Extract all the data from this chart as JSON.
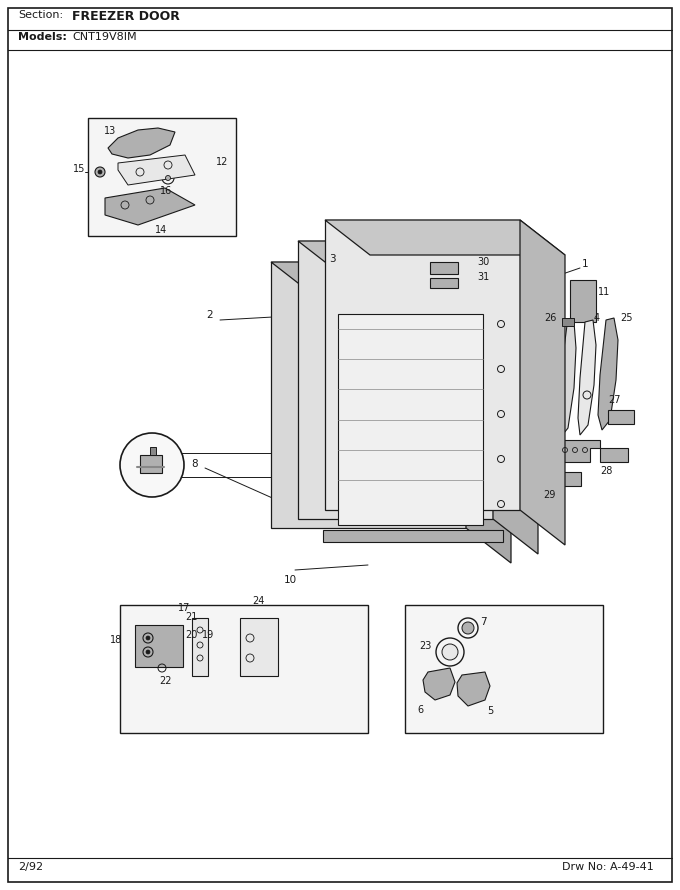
{
  "bg_color": "#ffffff",
  "lc": "#1a1a1a",
  "gray_light": "#d0d0d0",
  "gray_med": "#b0b0b0",
  "gray_dark": "#888888",
  "header_section_label": "Section:",
  "header_section_value": "FREEZER DOOR",
  "header_models_label": "Models:",
  "header_models_value": "CNT19V8IM",
  "footer_left": "2/92",
  "footer_right": "Drw No: A-49-41",
  "fig_w": 6.8,
  "fig_h": 8.9,
  "dpi": 100
}
